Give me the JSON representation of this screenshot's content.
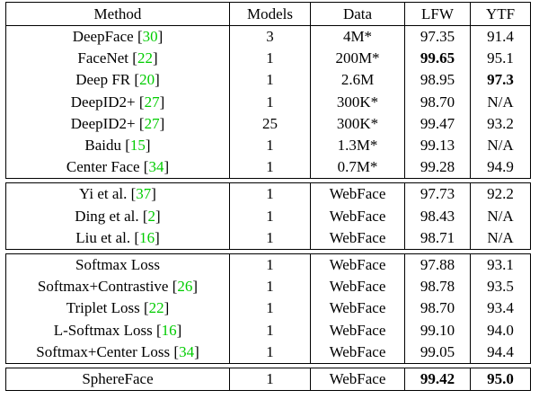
{
  "columns": [
    "Method",
    "Models",
    "Data",
    "LFW",
    "YTF"
  ],
  "groups": [
    {
      "rows": [
        {
          "method": "DeepFace",
          "ref": "30",
          "models": "3",
          "data": "4M*",
          "lfw": "97.35",
          "ytf": "91.4",
          "lfw_bold": false,
          "ytf_bold": false
        },
        {
          "method": "FaceNet",
          "ref": "22",
          "models": "1",
          "data": "200M*",
          "lfw": "99.65",
          "ytf": "95.1",
          "lfw_bold": true,
          "ytf_bold": false
        },
        {
          "method": "Deep FR",
          "ref": "20",
          "models": "1",
          "data": "2.6M",
          "lfw": "98.95",
          "ytf": "97.3",
          "lfw_bold": false,
          "ytf_bold": true
        },
        {
          "method": "DeepID2+",
          "ref": "27",
          "models": "1",
          "data": "300K*",
          "lfw": "98.70",
          "ytf": "N/A",
          "lfw_bold": false,
          "ytf_bold": false
        },
        {
          "method": "DeepID2+",
          "ref": "27",
          "models": "25",
          "data": "300K*",
          "lfw": "99.47",
          "ytf": "93.2",
          "lfw_bold": false,
          "ytf_bold": false
        },
        {
          "method": "Baidu",
          "ref": "15",
          "models": "1",
          "data": "1.3M*",
          "lfw": "99.13",
          "ytf": "N/A",
          "lfw_bold": false,
          "ytf_bold": false
        },
        {
          "method": "Center Face",
          "ref": "34",
          "models": "1",
          "data": "0.7M*",
          "lfw": "99.28",
          "ytf": "94.9",
          "lfw_bold": false,
          "ytf_bold": false
        }
      ]
    },
    {
      "rows": [
        {
          "method": "Yi et al.",
          "ref": "37",
          "models": "1",
          "data": "WebFace",
          "lfw": "97.73",
          "ytf": "92.2",
          "lfw_bold": false,
          "ytf_bold": false
        },
        {
          "method": "Ding et al.",
          "ref": "2",
          "models": "1",
          "data": "WebFace",
          "lfw": "98.43",
          "ytf": "N/A",
          "lfw_bold": false,
          "ytf_bold": false
        },
        {
          "method": "Liu et al.",
          "ref": "16",
          "models": "1",
          "data": "WebFace",
          "lfw": "98.71",
          "ytf": "N/A",
          "lfw_bold": false,
          "ytf_bold": false
        }
      ]
    },
    {
      "rows": [
        {
          "method": "Softmax Loss",
          "ref": "",
          "models": "1",
          "data": "WebFace",
          "lfw": "97.88",
          "ytf": "93.1",
          "lfw_bold": false,
          "ytf_bold": false
        },
        {
          "method": "Softmax+Contrastive",
          "ref": "26",
          "models": "1",
          "data": "WebFace",
          "lfw": "98.78",
          "ytf": "93.5",
          "lfw_bold": false,
          "ytf_bold": false
        },
        {
          "method": "Triplet Loss",
          "ref": "22",
          "models": "1",
          "data": "WebFace",
          "lfw": "98.70",
          "ytf": "93.4",
          "lfw_bold": false,
          "ytf_bold": false
        },
        {
          "method": "L-Softmax Loss",
          "ref": "16",
          "models": "1",
          "data": "WebFace",
          "lfw": "99.10",
          "ytf": "94.0",
          "lfw_bold": false,
          "ytf_bold": false
        },
        {
          "method": "Softmax+Center Loss",
          "ref": "34",
          "models": "1",
          "data": "WebFace",
          "lfw": "99.05",
          "ytf": "94.4",
          "lfw_bold": false,
          "ytf_bold": false
        }
      ]
    },
    {
      "rows": [
        {
          "method": "SphereFace",
          "ref": "",
          "models": "1",
          "data": "WebFace",
          "lfw": "99.42",
          "ytf": "95.0",
          "lfw_bold": true,
          "ytf_bold": true
        }
      ]
    }
  ],
  "colors": {
    "reference_link": "#00cc00",
    "text": "#000000",
    "background": "#ffffff"
  }
}
